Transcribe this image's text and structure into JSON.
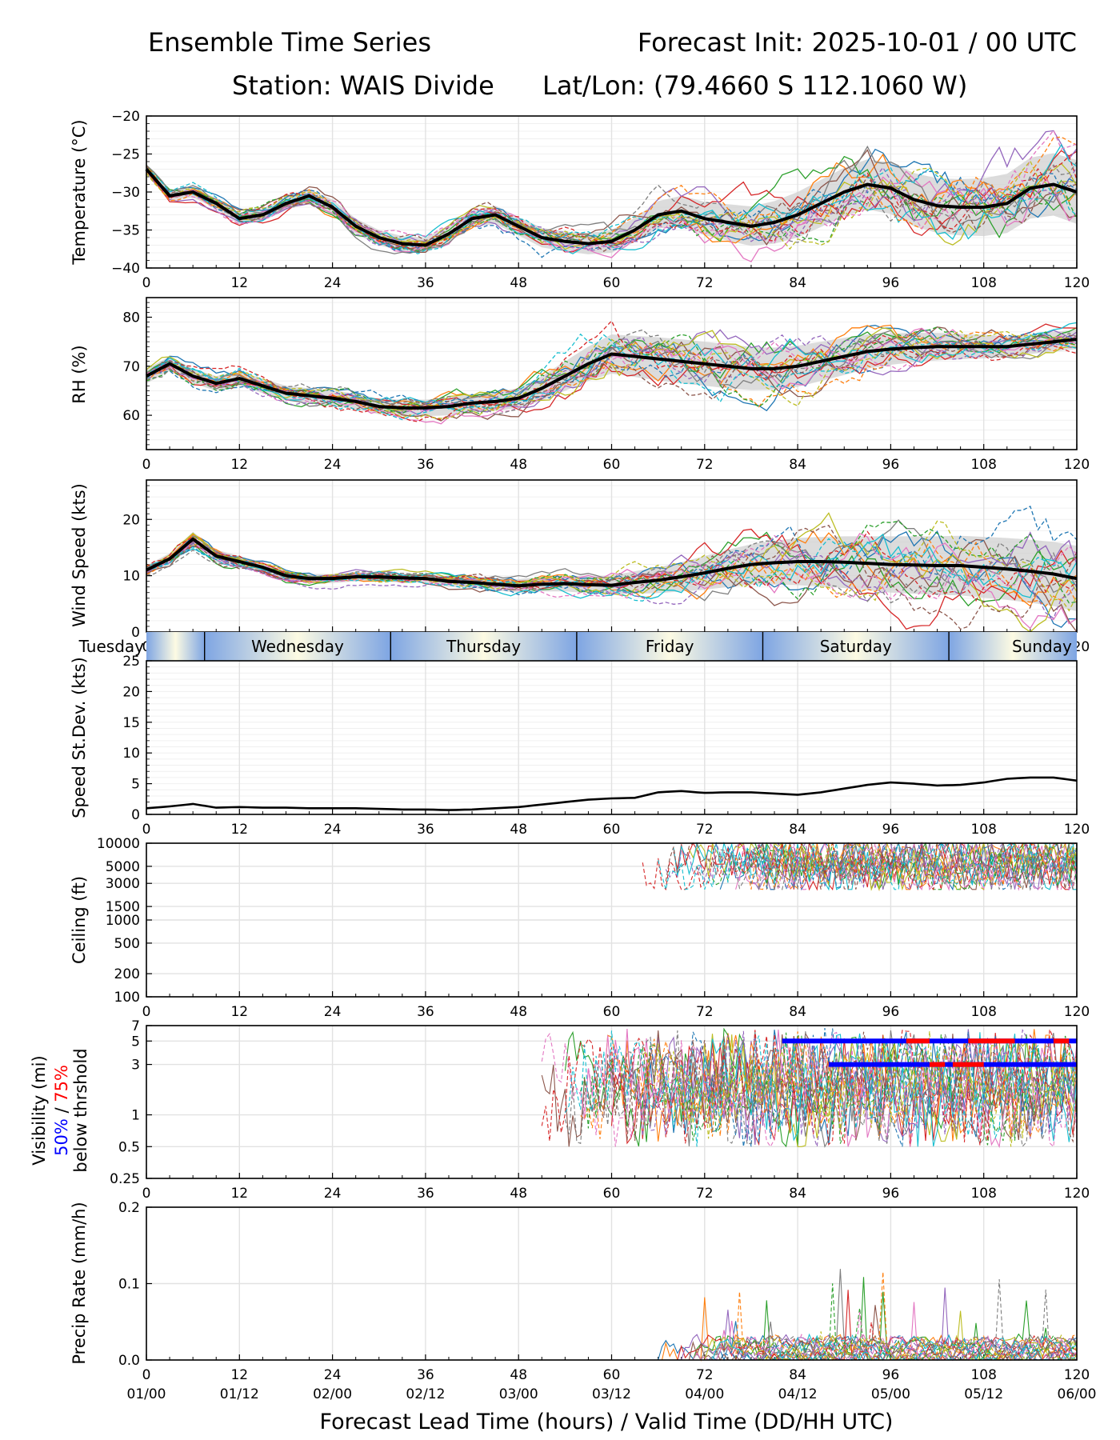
{
  "header": {
    "title_left": "Ensemble Time Series",
    "title_right": "Forecast Init: 2025-10-01 / 00 UTC",
    "station": "Station: WAIS Divide",
    "latlon": "Lat/Lon: (79.4660 S 112.1060 W)"
  },
  "colors": {
    "members": [
      "#1f77b4",
      "#ff7f0e",
      "#2ca02c",
      "#d62728",
      "#9467bd",
      "#8c564b",
      "#e377c2",
      "#7f7f7f",
      "#bcbd22",
      "#17becf"
    ],
    "mean": "#000000",
    "spread": "#d0d0d0",
    "vis50": "#0000ff",
    "vis75": "#ff0000",
    "day_light": "#fdfbe3",
    "day_dark": "#7ea5e3"
  },
  "x_axis": {
    "lead_ticks": [
      "0",
      "12",
      "24",
      "36",
      "48",
      "60",
      "72",
      "84",
      "96",
      "108",
      "120"
    ],
    "valid_ticks": [
      "01/00",
      "01/12",
      "02/00",
      "02/12",
      "03/00",
      "03/12",
      "04/00",
      "04/12",
      "05/00",
      "05/12",
      "06/00"
    ],
    "xlabel": "Forecast Lead Time (hours) / Valid Time (DD/HH UTC)"
  },
  "day_strip": {
    "days": [
      "Tuesday",
      "Wednesday",
      "Thursday",
      "Friday",
      "Saturday",
      "Sunday"
    ]
  },
  "chart_data": [
    {
      "id": "temperature",
      "type": "line",
      "ylabel": "Temperature (°C)",
      "ylim": [
        -40,
        -20
      ],
      "ticks": [
        "-20",
        "-25",
        "-30",
        "-35",
        "-40"
      ],
      "x": [
        0,
        3,
        6,
        9,
        12,
        15,
        18,
        21,
        24,
        27,
        30,
        33,
        36,
        39,
        42,
        45,
        48,
        51,
        54,
        57,
        60,
        63,
        66,
        69,
        72,
        75,
        78,
        81,
        84,
        87,
        90,
        93,
        96,
        99,
        102,
        105,
        108,
        111,
        114,
        117,
        120
      ],
      "mean": [
        -27,
        -30.5,
        -30,
        -31.5,
        -33.5,
        -33,
        -31.5,
        -30.5,
        -32,
        -34.5,
        -36,
        -36.8,
        -37,
        -35.5,
        -33.5,
        -33,
        -34.5,
        -36,
        -36.5,
        -36.8,
        -36.5,
        -35,
        -33,
        -32.5,
        -33.5,
        -34,
        -34.5,
        -34,
        -33,
        -31.5,
        -30,
        -29,
        -29.5,
        -31,
        -31.8,
        -32,
        -32,
        -31.5,
        -29.5,
        -29,
        -30
      ],
      "spread": [
        0.6,
        0.6,
        0.7,
        0.7,
        0.8,
        0.8,
        0.9,
        0.9,
        1,
        1,
        1,
        1,
        1,
        1.1,
        1.1,
        1.2,
        1.2,
        1.3,
        1.3,
        1.4,
        1.5,
        1.6,
        1.8,
        2,
        2.2,
        2.4,
        2.6,
        2.8,
        3,
        3.1,
        3.2,
        3.3,
        3.4,
        3.5,
        3.6,
        3.7,
        3.8,
        3.9,
        4,
        4.1,
        4.2
      ],
      "members": 20
    },
    {
      "id": "rh",
      "type": "line",
      "ylabel": "RH (%)",
      "ylim": [
        53,
        84
      ],
      "ticks": [
        "80",
        "70",
        "60"
      ],
      "x": [
        0,
        3,
        6,
        9,
        12,
        15,
        18,
        21,
        24,
        27,
        30,
        33,
        36,
        39,
        42,
        45,
        48,
        51,
        54,
        57,
        60,
        63,
        66,
        69,
        72,
        75,
        78,
        81,
        84,
        87,
        90,
        93,
        96,
        99,
        102,
        105,
        108,
        111,
        114,
        117,
        120
      ],
      "mean": [
        68,
        70.5,
        68,
        66.5,
        67.5,
        66,
        64.5,
        64,
        63.5,
        62.8,
        61.8,
        61.5,
        61.5,
        61.8,
        62.5,
        62.8,
        63.5,
        65.5,
        68,
        70.5,
        72.5,
        72,
        71.5,
        71,
        70.5,
        70,
        69.5,
        69.5,
        70,
        71,
        72,
        73,
        73.5,
        73.8,
        74,
        74,
        74,
        74,
        74.5,
        75,
        75.5
      ],
      "spread": [
        1.5,
        1.5,
        1.5,
        1.5,
        1.5,
        1.5,
        1.5,
        1.5,
        1.6,
        1.6,
        1.6,
        1.7,
        1.7,
        1.8,
        1.8,
        1.9,
        2,
        2.5,
        3,
        3.5,
        4,
        4.2,
        4.4,
        4.5,
        4.5,
        4.5,
        4.4,
        4.3,
        4.2,
        4,
        3.8,
        3.5,
        3.2,
        3,
        2.8,
        2.6,
        2.4,
        2.2,
        2,
        2,
        2
      ],
      "members": 20
    },
    {
      "id": "wind",
      "type": "line",
      "ylabel": "Wind Speed (kts)",
      "ylim": [
        0,
        27
      ],
      "ticks": [
        "20",
        "10",
        "0"
      ],
      "x": [
        0,
        3,
        6,
        9,
        12,
        15,
        18,
        21,
        24,
        27,
        30,
        33,
        36,
        39,
        42,
        45,
        48,
        51,
        54,
        57,
        60,
        63,
        66,
        69,
        72,
        75,
        78,
        81,
        84,
        87,
        90,
        93,
        96,
        99,
        102,
        105,
        108,
        111,
        114,
        117,
        120
      ],
      "mean": [
        11,
        13,
        16.5,
        13.5,
        12.5,
        11.5,
        10,
        9.5,
        9.5,
        9.8,
        9.8,
        9.6,
        9.5,
        9,
        8.8,
        8.5,
        8.2,
        8.5,
        8.6,
        8.4,
        8.3,
        8.8,
        9.2,
        9.8,
        10.5,
        11.3,
        12,
        12.3,
        12.5,
        12.5,
        12.4,
        12.2,
        12,
        11.9,
        11.8,
        11.8,
        11.5,
        11.2,
        10.8,
        10.3,
        9.5
      ],
      "spread": [
        0.8,
        1,
        1.3,
        1.1,
        1,
        0.9,
        0.8,
        0.8,
        0.8,
        0.8,
        0.8,
        0.8,
        0.8,
        0.9,
        1,
        1.1,
        1.2,
        1.3,
        1.4,
        1.5,
        1.7,
        2,
        2.3,
        2.6,
        3,
        3.3,
        3.6,
        3.9,
        4.2,
        4.4,
        4.6,
        4.8,
        5,
        5.1,
        5.2,
        5.3,
        5.4,
        5.5,
        5.6,
        5.7,
        5.8
      ],
      "members": 20
    },
    {
      "id": "speed_sd",
      "type": "line",
      "ylabel": "Speed St.Dev. (kts)",
      "ylim": [
        0,
        25
      ],
      "ticks": [
        "25",
        "20",
        "15",
        "10",
        "5",
        "0"
      ],
      "x": [
        0,
        3,
        6,
        9,
        12,
        15,
        18,
        21,
        24,
        27,
        30,
        33,
        36,
        39,
        42,
        45,
        48,
        51,
        54,
        57,
        60,
        63,
        66,
        69,
        72,
        75,
        78,
        81,
        84,
        87,
        90,
        93,
        96,
        99,
        102,
        105,
        108,
        111,
        114,
        117,
        120
      ],
      "mean": [
        1,
        1.3,
        1.7,
        1.1,
        1.2,
        1.1,
        1.1,
        1,
        1,
        1,
        0.9,
        0.8,
        0.8,
        0.7,
        0.8,
        1,
        1.2,
        1.6,
        2,
        2.4,
        2.6,
        2.7,
        3.6,
        3.8,
        3.5,
        3.6,
        3.6,
        3.4,
        3.2,
        3.6,
        4.2,
        4.8,
        5.2,
        5,
        4.7,
        4.8,
        5.2,
        5.8,
        6,
        6,
        5.5
      ]
    },
    {
      "id": "ceiling",
      "type": "line",
      "ylabel": "Ceiling (ft)",
      "scale": "log",
      "ylim": [
        100,
        10000
      ],
      "ticks": [
        "10000",
        "5000",
        "3000",
        "1500",
        "1000",
        "500",
        "200",
        "100"
      ],
      "onset_hour": 64,
      "members": 20
    },
    {
      "id": "visibility",
      "type": "line",
      "ylabel": "Visibility (mi)",
      "ylabel_50": "50%",
      "ylabel_slash": " / ",
      "ylabel_75": "75%",
      "ylabel_below": "below thrshold",
      "scale": "log",
      "ylim": [
        0.25,
        7
      ],
      "ticks": [
        "7",
        "5",
        "3",
        "1",
        "0.5",
        "0.25"
      ],
      "threshold_lines": [
        5,
        3
      ],
      "onset_hour": 51,
      "members": 20
    },
    {
      "id": "precip",
      "type": "line",
      "ylabel": "Precip Rate (mm/h)",
      "ylim": [
        0,
        0.2
      ],
      "ticks": [
        "0.2",
        "0.1",
        "0.0"
      ],
      "onset_hour": 66,
      "members": 20
    }
  ]
}
